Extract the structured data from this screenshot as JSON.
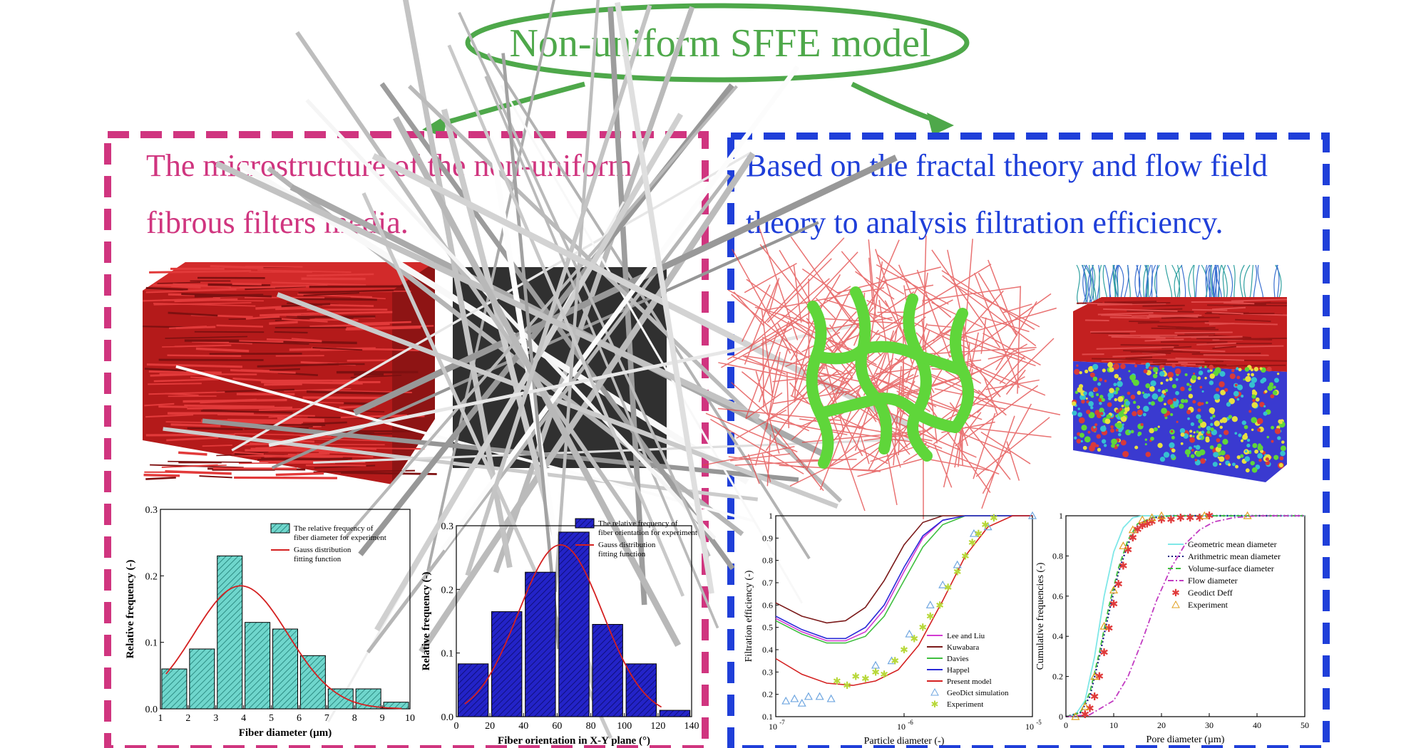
{
  "header": {
    "title": "Non-uniform SFFE model"
  },
  "left_panel": {
    "title_line1": "The microstructure of the non-uniform",
    "title_line2": "fibrous filters media."
  },
  "right_panel": {
    "title_line1": "Based on the fractal theory and flow field",
    "title_line2": "theory to analysis filtration efficiency."
  },
  "colors": {
    "ellipse_green": "#4ea84a",
    "left_border": "#d0357f",
    "right_border": "#1f3fd9",
    "fiber_red": "#cc2020",
    "pore_green": "#66e03a"
  },
  "chart_data": [
    {
      "type": "bar",
      "xlabel": "Fiber diameter (µm)",
      "ylabel": "Relative frequency (-)",
      "xlim": [
        1,
        10
      ],
      "ylim": [
        0,
        0.3
      ],
      "xticks": [
        "1",
        "2",
        "3",
        "4",
        "5",
        "6",
        "7",
        "8",
        "9",
        "10"
      ],
      "yticks": [
        "0.0",
        "0.1",
        "0.2",
        "0.3"
      ],
      "legend": [
        "The relative frequency of fiber diameter for experiment",
        "Gauss distribution fitting function"
      ],
      "bar_color": "#6fd6cc",
      "bars": [
        {
          "x": 1.5,
          "value": 0.06
        },
        {
          "x": 2.5,
          "value": 0.09
        },
        {
          "x": 3.5,
          "value": 0.23
        },
        {
          "x": 4.5,
          "value": 0.13
        },
        {
          "x": 5.5,
          "value": 0.12
        },
        {
          "x": 6.5,
          "value": 0.08
        },
        {
          "x": 7.5,
          "value": 0.03
        },
        {
          "x": 8.5,
          "value": 0.03
        },
        {
          "x": 9.5,
          "value": 0.01
        }
      ],
      "fit": {
        "name": "Gauss distribution fitting function",
        "mean": 3.9,
        "sd": 1.7,
        "peak": 0.185,
        "x_range": [
          1.2,
          9.7
        ]
      }
    },
    {
      "type": "bar",
      "xlabel": "Fiber orientation in X-Y plane (°)",
      "ylabel": "Relative frequency (-)",
      "xlim": [
        0,
        140
      ],
      "ylim": [
        0,
        0.3
      ],
      "xticks": [
        "0",
        "20",
        "40",
        "60",
        "80",
        "100",
        "120",
        "140"
      ],
      "yticks": [
        "0.0",
        "0.1",
        "0.2",
        "0.3"
      ],
      "legend": [
        "The relative frequency of fiber orientation for experiment",
        "Gauss distribution fitting function"
      ],
      "bar_color": "#2323c8",
      "bars": [
        {
          "x": 10,
          "value": 0.083
        },
        {
          "x": 30,
          "value": 0.165
        },
        {
          "x": 50,
          "value": 0.227
        },
        {
          "x": 70,
          "value": 0.29
        },
        {
          "x": 90,
          "value": 0.145
        },
        {
          "x": 110,
          "value": 0.083
        },
        {
          "x": 130,
          "value": 0.01
        }
      ],
      "fit": {
        "name": "Gauss distribution fitting function",
        "mean": 62,
        "sd": 25,
        "peak": 0.27,
        "x_range": [
          5,
          122
        ]
      }
    },
    {
      "type": "line",
      "xlabel": "Particle diameter (-)",
      "ylabel": "Filtration efficiency (-)",
      "x_scale": "log",
      "xlim": [
        1e-07,
        1e-05
      ],
      "ylim": [
        0.1,
        1.0
      ],
      "xticks": [
        "10",
        "10",
        "10"
      ],
      "xtick_exps": [
        "-7",
        "-6",
        "-5"
      ],
      "yticks": [
        "0.1",
        "0.2",
        "0.3",
        "0.4",
        "0.5",
        "0.6",
        "0.7",
        "0.8",
        "0.9",
        "1"
      ],
      "series": [
        {
          "name": "Lee and Liu",
          "color": "#d23bd2",
          "style": "line",
          "points": [
            [
              1e-07,
              0.54
            ],
            [
              1.6e-07,
              0.48
            ],
            [
              2.5e-07,
              0.44
            ],
            [
              3.5e-07,
              0.44
            ],
            [
              5e-07,
              0.48
            ],
            [
              7e-07,
              0.58
            ],
            [
              1e-06,
              0.75
            ],
            [
              1.4e-06,
              0.9
            ],
            [
              2e-06,
              0.98
            ],
            [
              3e-06,
              1.0
            ],
            [
              1e-05,
              1.0
            ]
          ]
        },
        {
          "name": "Kuwabara",
          "color": "#7b1a1a",
          "style": "line",
          "points": [
            [
              1e-07,
              0.61
            ],
            [
              1.6e-07,
              0.55
            ],
            [
              2.5e-07,
              0.52
            ],
            [
              3.5e-07,
              0.53
            ],
            [
              5e-07,
              0.59
            ],
            [
              7e-07,
              0.71
            ],
            [
              1e-06,
              0.87
            ],
            [
              1.4e-06,
              0.97
            ],
            [
              2e-06,
              1.0
            ],
            [
              1e-05,
              1.0
            ]
          ]
        },
        {
          "name": "Davies",
          "color": "#3fbf3f",
          "style": "line",
          "points": [
            [
              1e-07,
              0.53
            ],
            [
              1.6e-07,
              0.47
            ],
            [
              2.5e-07,
              0.43
            ],
            [
              3.5e-07,
              0.43
            ],
            [
              5e-07,
              0.46
            ],
            [
              7e-07,
              0.55
            ],
            [
              1e-06,
              0.71
            ],
            [
              1.4e-06,
              0.86
            ],
            [
              2e-06,
              0.96
            ],
            [
              3e-06,
              1.0
            ],
            [
              1e-05,
              1.0
            ]
          ]
        },
        {
          "name": "Happel",
          "color": "#2a2ad8",
          "style": "line",
          "points": [
            [
              1e-07,
              0.55
            ],
            [
              1.6e-07,
              0.49
            ],
            [
              2.5e-07,
              0.45
            ],
            [
              3.5e-07,
              0.45
            ],
            [
              5e-07,
              0.5
            ],
            [
              7e-07,
              0.6
            ],
            [
              1e-06,
              0.77
            ],
            [
              1.4e-06,
              0.91
            ],
            [
              2e-06,
              0.98
            ],
            [
              3e-06,
              1.0
            ],
            [
              1e-05,
              1.0
            ]
          ]
        },
        {
          "name": "Present model",
          "color": "#d42020",
          "style": "line",
          "points": [
            [
              1e-07,
              0.36
            ],
            [
              1.6e-07,
              0.29
            ],
            [
              2.5e-07,
              0.25
            ],
            [
              4e-07,
              0.24
            ],
            [
              6e-07,
              0.26
            ],
            [
              9e-07,
              0.31
            ],
            [
              1.3e-06,
              0.42
            ],
            [
              2e-06,
              0.62
            ],
            [
              3e-06,
              0.82
            ],
            [
              4.5e-06,
              0.95
            ],
            [
              7e-06,
              1.0
            ],
            [
              1e-05,
              1.0
            ]
          ]
        },
        {
          "name": "GeoDict simulation",
          "color": "#6fa6e0",
          "style": "triangle",
          "points": [
            [
              1.2e-07,
              0.17
            ],
            [
              1.4e-07,
              0.18
            ],
            [
              1.6e-07,
              0.16
            ],
            [
              1.8e-07,
              0.19
            ],
            [
              2.2e-07,
              0.19
            ],
            [
              2.7e-07,
              0.18
            ],
            [
              6e-07,
              0.33
            ],
            [
              8e-07,
              0.35
            ],
            [
              1.1e-06,
              0.47
            ],
            [
              1.6e-06,
              0.6
            ],
            [
              2e-06,
              0.69
            ],
            [
              2.6e-06,
              0.78
            ],
            [
              3.5e-06,
              0.92
            ],
            [
              4.5e-06,
              0.95
            ],
            [
              1e-05,
              1.0
            ]
          ]
        },
        {
          "name": "Experiment",
          "color": "#b8d83a",
          "style": "star",
          "points": [
            [
              3e-07,
              0.26
            ],
            [
              3.6e-07,
              0.24
            ],
            [
              4.2e-07,
              0.28
            ],
            [
              5e-07,
              0.27
            ],
            [
              6e-07,
              0.3
            ],
            [
              7e-07,
              0.29
            ],
            [
              8.5e-07,
              0.35
            ],
            [
              1e-06,
              0.4
            ],
            [
              1.2e-06,
              0.45
            ],
            [
              1.4e-06,
              0.5
            ],
            [
              1.6e-06,
              0.55
            ],
            [
              1.9e-06,
              0.6
            ],
            [
              2.2e-06,
              0.68
            ],
            [
              2.6e-06,
              0.75
            ],
            [
              3e-06,
              0.82
            ],
            [
              3.4e-06,
              0.88
            ],
            [
              3.8e-06,
              0.92
            ],
            [
              4.3e-06,
              0.96
            ],
            [
              5e-06,
              0.99
            ]
          ]
        }
      ]
    },
    {
      "type": "line",
      "xlabel": "Pore diameter (µm)",
      "ylabel": "Cumulative frequencies (-)",
      "xlim": [
        0,
        50
      ],
      "ylim": [
        0,
        1.0
      ],
      "xticks": [
        "0",
        "10",
        "20",
        "30",
        "40",
        "50"
      ],
      "yticks": [
        "0",
        "0.2",
        "0.4",
        "0.6",
        "0.8",
        "1"
      ],
      "series": [
        {
          "name": "Geometric mean diameter",
          "color": "#7fe8e8",
          "style": "line",
          "points": [
            [
              0,
              0
            ],
            [
              2,
              0.01
            ],
            [
              4,
              0.08
            ],
            [
              6,
              0.3
            ],
            [
              8,
              0.6
            ],
            [
              10,
              0.82
            ],
            [
              12,
              0.94
            ],
            [
              14,
              0.99
            ],
            [
              16,
              1.0
            ],
            [
              50,
              1.0
            ]
          ]
        },
        {
          "name": "Arithmetric mean diameter",
          "color": "#1a1a80",
          "style": "dotted",
          "points": [
            [
              0,
              0
            ],
            [
              3,
              0.02
            ],
            [
              5,
              0.1
            ],
            [
              7,
              0.3
            ],
            [
              9,
              0.52
            ],
            [
              11,
              0.72
            ],
            [
              13,
              0.86
            ],
            [
              15,
              0.95
            ],
            [
              18,
              0.99
            ],
            [
              22,
              1.0
            ],
            [
              50,
              1.0
            ]
          ]
        },
        {
          "name": "Volume-surface diameter",
          "color": "#3fbf3f",
          "style": "dashed",
          "points": [
            [
              0,
              0
            ],
            [
              3,
              0.02
            ],
            [
              5,
              0.12
            ],
            [
              7,
              0.32
            ],
            [
              9,
              0.55
            ],
            [
              11,
              0.74
            ],
            [
              13,
              0.88
            ],
            [
              15,
              0.96
            ],
            [
              18,
              0.99
            ],
            [
              22,
              1.0
            ],
            [
              50,
              1.0
            ]
          ]
        },
        {
          "name": "Flow diameter",
          "color": "#c23bc2",
          "style": "dashdot",
          "points": [
            [
              0,
              0
            ],
            [
              5,
              0.01
            ],
            [
              10,
              0.08
            ],
            [
              13,
              0.2
            ],
            [
              16,
              0.38
            ],
            [
              19,
              0.58
            ],
            [
              22,
              0.74
            ],
            [
              25,
              0.86
            ],
            [
              28,
              0.93
            ],
            [
              31,
              0.97
            ],
            [
              35,
              0.99
            ],
            [
              40,
              1.0
            ],
            [
              50,
              1.0
            ]
          ]
        },
        {
          "name": "Geodict Deff",
          "color": "#e03a3a",
          "style": "star",
          "points": [
            [
              4,
              0.01
            ],
            [
              5,
              0.04
            ],
            [
              6,
              0.1
            ],
            [
              7,
              0.2
            ],
            [
              8,
              0.32
            ],
            [
              9,
              0.44
            ],
            [
              10,
              0.56
            ],
            [
              11,
              0.66
            ],
            [
              12,
              0.75
            ],
            [
              13,
              0.83
            ],
            [
              14,
              0.89
            ],
            [
              15,
              0.93
            ],
            [
              16,
              0.95
            ],
            [
              17,
              0.96
            ],
            [
              18,
              0.97
            ],
            [
              20,
              0.98
            ],
            [
              22,
              0.98
            ],
            [
              24,
              0.99
            ],
            [
              26,
              0.99
            ],
            [
              28,
              0.99
            ],
            [
              30,
              1.0
            ]
          ]
        },
        {
          "name": "Experiment",
          "color": "#e0a020",
          "style": "triangle",
          "points": [
            [
              2,
              0.0
            ],
            [
              4,
              0.05
            ],
            [
              6,
              0.2
            ],
            [
              8,
              0.45
            ],
            [
              10,
              0.63
            ],
            [
              12,
              0.85
            ],
            [
              14,
              0.93
            ],
            [
              16,
              0.98
            ],
            [
              18,
              0.99
            ],
            [
              20,
              1.0
            ],
            [
              29,
              1.0
            ],
            [
              38,
              1.0
            ]
          ]
        }
      ]
    }
  ]
}
